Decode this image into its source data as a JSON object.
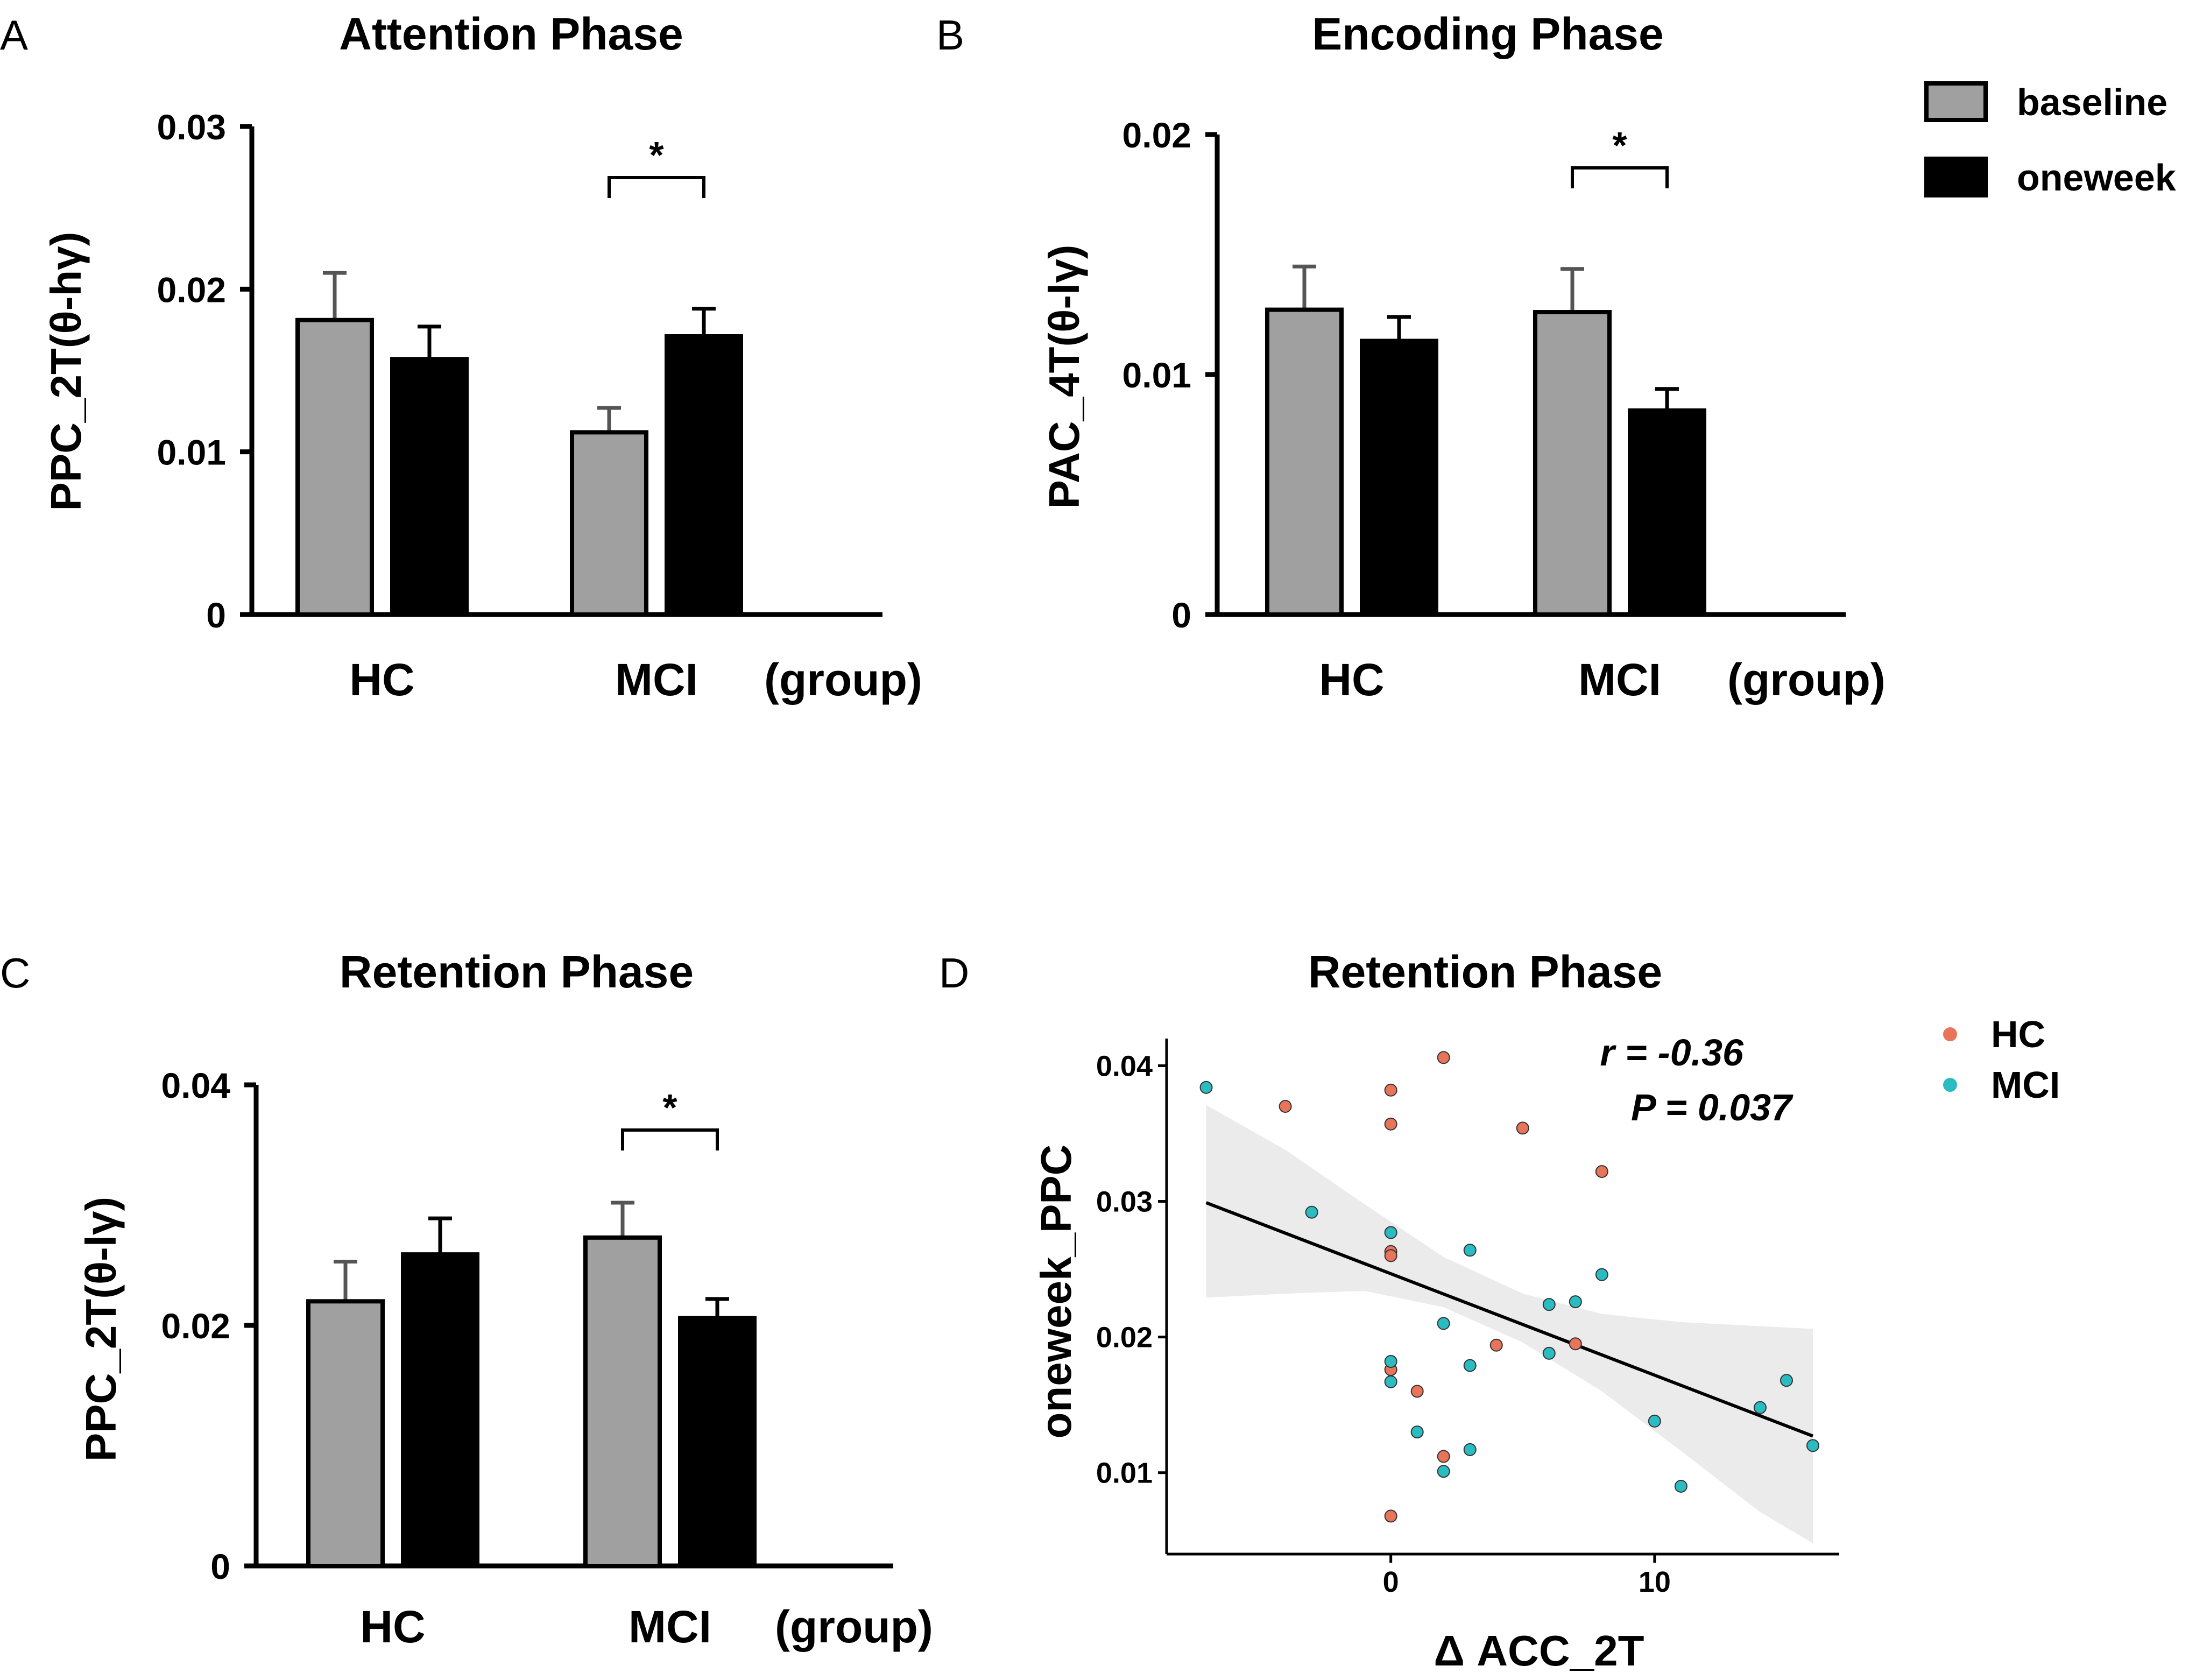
{
  "panels": [
    {
      "letter": "A"
    },
    {
      "letter": "B"
    },
    {
      "letter": "C"
    },
    {
      "letter": "D"
    }
  ],
  "legend": {
    "items": [
      {
        "label": "baseline",
        "color": "#a0a0a0"
      },
      {
        "label": "oneweek",
        "color": "#000000"
      }
    ]
  },
  "chart_data": [
    {
      "type": "bar",
      "panel": "A",
      "title": "Attention Phase",
      "ylabel": "PPC_2T(θ-hγ)",
      "xlabel": "(group)",
      "categories": [
        "HC",
        "MCI"
      ],
      "series": [
        {
          "name": "baseline",
          "values": [
            0.0181,
            0.0112
          ],
          "errors": [
            0.0029,
            0.0015
          ],
          "color": "#a0a0a0"
        },
        {
          "name": "oneweek",
          "values": [
            0.0157,
            0.0171
          ],
          "errors": [
            0.002,
            0.0017
          ],
          "color": "#000000"
        }
      ],
      "ylim": [
        0,
        0.03
      ],
      "yticks": [
        0,
        0.01,
        0.02,
        0.03
      ],
      "ytick_labels": [
        "0",
        "0.01",
        "0.02",
        "0.03"
      ],
      "significance": [
        {
          "category": "MCI",
          "label": "*"
        }
      ]
    },
    {
      "type": "bar",
      "panel": "B",
      "title": "Encoding Phase",
      "ylabel": "PAC_4T(θ-lγ)",
      "xlabel": "(group)",
      "categories": [
        "HC",
        "MCI"
      ],
      "series": [
        {
          "name": "baseline",
          "values": [
            0.0127,
            0.0126
          ],
          "errors": [
            0.0018,
            0.0018
          ],
          "color": "#a0a0a0"
        },
        {
          "name": "oneweek",
          "values": [
            0.0114,
            0.0085
          ],
          "errors": [
            0.001,
            0.0009
          ],
          "color": "#000000"
        }
      ],
      "ylim": [
        0,
        0.02
      ],
      "yticks": [
        0,
        0.01,
        0.02
      ],
      "ytick_labels": [
        "0",
        "0.01",
        "0.02"
      ],
      "significance": [
        {
          "category": "MCI",
          "label": "*"
        }
      ]
    },
    {
      "type": "bar",
      "panel": "C",
      "title": "Retention Phase",
      "ylabel": "PPC_2T(θ-lγ)",
      "xlabel": "(group)",
      "categories": [
        "HC",
        "MCI"
      ],
      "series": [
        {
          "name": "baseline",
          "values": [
            0.022,
            0.0273
          ],
          "errors": [
            0.0033,
            0.0029
          ],
          "color": "#a0a0a0"
        },
        {
          "name": "oneweek",
          "values": [
            0.0259,
            0.0206
          ],
          "errors": [
            0.003,
            0.0016
          ],
          "color": "#000000"
        }
      ],
      "ylim": [
        0,
        0.04
      ],
      "yticks": [
        0,
        0.02,
        0.04
      ],
      "ytick_labels": [
        "0",
        "0.02",
        "0.04"
      ],
      "significance": [
        {
          "category": "MCI",
          "label": "*"
        }
      ]
    },
    {
      "type": "scatter",
      "panel": "D",
      "title": "Retention Phase",
      "xlabel": "Δ ACC_2T",
      "ylabel": "oneweek_PPC",
      "xlim": [
        -8.5,
        17
      ],
      "ylim": [
        0.004,
        0.042
      ],
      "xticks": [
        0,
        10
      ],
      "xtick_labels": [
        "0",
        "10"
      ],
      "yticks": [
        0.01,
        0.02,
        0.03,
        0.04
      ],
      "ytick_labels": [
        "0.01",
        "0.02",
        "0.03",
        "0.04"
      ],
      "annotation": {
        "r": "r = -0.36",
        "p": "P = 0.037"
      },
      "legend": [
        {
          "name": "HC",
          "color": "#e8745a"
        },
        {
          "name": "MCI",
          "color": "#2bbcc2"
        }
      ],
      "regression": {
        "x": [
          -7,
          16
        ],
        "y": [
          0.0299,
          0.0127
        ]
      },
      "ci_band": {
        "x": [
          -7,
          -4,
          -1,
          2,
          5,
          8,
          11,
          14,
          16
        ],
        "lower": [
          0.0229,
          0.0232,
          0.0234,
          0.0222,
          0.0196,
          0.016,
          0.0116,
          0.0071,
          0.0048
        ],
        "upper": [
          0.0371,
          0.0338,
          0.0298,
          0.0259,
          0.0232,
          0.0217,
          0.0211,
          0.0208,
          0.0206
        ]
      },
      "series": [
        {
          "name": "HC",
          "x": [
            -4,
            0,
            0,
            0,
            0,
            0,
            0,
            1,
            2,
            2,
            4,
            5,
            7,
            8
          ],
          "y": [
            0.037,
            0.0382,
            0.0357,
            0.0263,
            0.026,
            0.0176,
            0.0068,
            0.016,
            0.0406,
            0.0112,
            0.0194,
            0.0354,
            0.0195,
            0.0322
          ]
        },
        {
          "name": "MCI",
          "x": [
            -7,
            -3,
            0,
            0,
            0,
            1,
            2,
            2,
            3,
            3,
            3,
            6,
            6,
            7,
            8,
            10,
            11,
            14,
            15,
            16
          ],
          "y": [
            0.0384,
            0.0292,
            0.0277,
            0.0182,
            0.0167,
            0.013,
            0.021,
            0.0101,
            0.0264,
            0.0179,
            0.0117,
            0.0224,
            0.0188,
            0.0226,
            0.0246,
            0.0138,
            0.009,
            0.0148,
            0.0168,
            0.012
          ]
        }
      ]
    }
  ]
}
